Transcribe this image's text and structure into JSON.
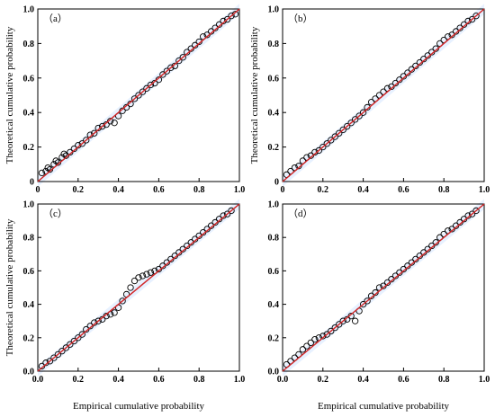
{
  "chart_data": [
    {
      "type": "scatter",
      "panel_label": "（a）",
      "xlabel": "",
      "ylabel": "Theoretical cumulative probability",
      "xlim": [
        0,
        1.0
      ],
      "ylim": [
        0,
        1.0
      ],
      "xticks": [
        "0",
        "0.2",
        "0.4",
        "0.6",
        "0.8",
        "1.0"
      ],
      "yticks": [
        "0",
        "0.2",
        "0.4",
        "0.6",
        "0.8",
        "1.0"
      ],
      "grid": false,
      "series": [
        {
          "values": [
            [
              0.02,
              0.05
            ],
            [
              0.04,
              0.06
            ],
            [
              0.05,
              0.08
            ],
            [
              0.06,
              0.07
            ],
            [
              0.08,
              0.1
            ],
            [
              0.09,
              0.12
            ],
            [
              0.1,
              0.11
            ],
            [
              0.12,
              0.14
            ],
            [
              0.13,
              0.16
            ],
            [
              0.14,
              0.15
            ],
            [
              0.16,
              0.17
            ],
            [
              0.18,
              0.19
            ],
            [
              0.2,
              0.21
            ],
            [
              0.22,
              0.22
            ],
            [
              0.24,
              0.24
            ],
            [
              0.26,
              0.27
            ],
            [
              0.28,
              0.28
            ],
            [
              0.3,
              0.31
            ],
            [
              0.32,
              0.32
            ],
            [
              0.34,
              0.33
            ],
            [
              0.36,
              0.35
            ],
            [
              0.38,
              0.34
            ],
            [
              0.4,
              0.38
            ],
            [
              0.42,
              0.41
            ],
            [
              0.44,
              0.43
            ],
            [
              0.46,
              0.45
            ],
            [
              0.48,
              0.48
            ],
            [
              0.5,
              0.5
            ],
            [
              0.52,
              0.52
            ],
            [
              0.54,
              0.54
            ],
            [
              0.56,
              0.56
            ],
            [
              0.58,
              0.57
            ],
            [
              0.6,
              0.59
            ],
            [
              0.62,
              0.62
            ],
            [
              0.64,
              0.64
            ],
            [
              0.66,
              0.66
            ],
            [
              0.68,
              0.67
            ],
            [
              0.7,
              0.7
            ],
            [
              0.72,
              0.72
            ],
            [
              0.74,
              0.75
            ],
            [
              0.76,
              0.77
            ],
            [
              0.78,
              0.79
            ],
            [
              0.8,
              0.81
            ],
            [
              0.82,
              0.84
            ],
            [
              0.84,
              0.85
            ],
            [
              0.86,
              0.87
            ],
            [
              0.88,
              0.89
            ],
            [
              0.9,
              0.91
            ],
            [
              0.92,
              0.93
            ],
            [
              0.94,
              0.94
            ],
            [
              0.96,
              0.96
            ],
            [
              0.98,
              0.97
            ]
          ]
        }
      ]
    },
    {
      "type": "scatter",
      "panel_label": "（b）",
      "xlabel": "",
      "ylabel": "Theoretical cumulative probability",
      "xlim": [
        0,
        1.0
      ],
      "ylim": [
        0,
        1.0
      ],
      "xticks": [
        "0",
        "0.2",
        "0.4",
        "0.6",
        "0.8",
        "1.0"
      ],
      "yticks": [
        "0",
        "0.2",
        "0.4",
        "0.6",
        "0.8",
        "1.0"
      ],
      "grid": false,
      "series": [
        {
          "values": [
            [
              0.02,
              0.04
            ],
            [
              0.04,
              0.06
            ],
            [
              0.06,
              0.08
            ],
            [
              0.08,
              0.09
            ],
            [
              0.1,
              0.12
            ],
            [
              0.12,
              0.14
            ],
            [
              0.14,
              0.15
            ],
            [
              0.16,
              0.17
            ],
            [
              0.18,
              0.18
            ],
            [
              0.2,
              0.2
            ],
            [
              0.22,
              0.22
            ],
            [
              0.24,
              0.24
            ],
            [
              0.26,
              0.26
            ],
            [
              0.28,
              0.28
            ],
            [
              0.3,
              0.3
            ],
            [
              0.32,
              0.32
            ],
            [
              0.34,
              0.34
            ],
            [
              0.36,
              0.36
            ],
            [
              0.38,
              0.38
            ],
            [
              0.4,
              0.4
            ],
            [
              0.42,
              0.43
            ],
            [
              0.44,
              0.46
            ],
            [
              0.46,
              0.48
            ],
            [
              0.48,
              0.5
            ],
            [
              0.5,
              0.52
            ],
            [
              0.52,
              0.54
            ],
            [
              0.54,
              0.55
            ],
            [
              0.56,
              0.57
            ],
            [
              0.58,
              0.59
            ],
            [
              0.6,
              0.61
            ],
            [
              0.62,
              0.63
            ],
            [
              0.64,
              0.65
            ],
            [
              0.66,
              0.67
            ],
            [
              0.68,
              0.69
            ],
            [
              0.7,
              0.71
            ],
            [
              0.72,
              0.73
            ],
            [
              0.74,
              0.75
            ],
            [
              0.76,
              0.77
            ],
            [
              0.78,
              0.8
            ],
            [
              0.8,
              0.82
            ],
            [
              0.82,
              0.84
            ],
            [
              0.84,
              0.85
            ],
            [
              0.86,
              0.87
            ],
            [
              0.88,
              0.89
            ],
            [
              0.9,
              0.91
            ],
            [
              0.92,
              0.93
            ],
            [
              0.94,
              0.94
            ],
            [
              0.96,
              0.96
            ]
          ]
        }
      ]
    },
    {
      "type": "scatter",
      "panel_label": "（c）",
      "xlabel": "Empirical cumulative probability",
      "ylabel": "Theoretical cumulative probability",
      "xlim": [
        0,
        1.0
      ],
      "ylim": [
        0,
        1.0
      ],
      "xticks": [
        "0.0",
        "0.2",
        "0.4",
        "0.6",
        "0.8",
        "1.0"
      ],
      "yticks": [
        "0.0",
        "0.2",
        "0.4",
        "0.6",
        "0.8",
        "1.0"
      ],
      "grid": false,
      "series": [
        {
          "values": [
            [
              0.02,
              0.03
            ],
            [
              0.04,
              0.05
            ],
            [
              0.06,
              0.06
            ],
            [
              0.08,
              0.08
            ],
            [
              0.1,
              0.1
            ],
            [
              0.12,
              0.12
            ],
            [
              0.14,
              0.14
            ],
            [
              0.16,
              0.16
            ],
            [
              0.18,
              0.18
            ],
            [
              0.2,
              0.2
            ],
            [
              0.22,
              0.22
            ],
            [
              0.24,
              0.25
            ],
            [
              0.26,
              0.27
            ],
            [
              0.28,
              0.29
            ],
            [
              0.3,
              0.3
            ],
            [
              0.32,
              0.31
            ],
            [
              0.34,
              0.33
            ],
            [
              0.36,
              0.34
            ],
            [
              0.38,
              0.35
            ],
            [
              0.4,
              0.38
            ],
            [
              0.42,
              0.42
            ],
            [
              0.44,
              0.46
            ],
            [
              0.46,
              0.5
            ],
            [
              0.48,
              0.54
            ],
            [
              0.5,
              0.56
            ],
            [
              0.52,
              0.57
            ],
            [
              0.54,
              0.58
            ],
            [
              0.56,
              0.59
            ],
            [
              0.58,
              0.6
            ],
            [
              0.6,
              0.61
            ],
            [
              0.62,
              0.63
            ],
            [
              0.64,
              0.65
            ],
            [
              0.66,
              0.67
            ],
            [
              0.68,
              0.69
            ],
            [
              0.7,
              0.71
            ],
            [
              0.72,
              0.73
            ],
            [
              0.74,
              0.75
            ],
            [
              0.76,
              0.77
            ],
            [
              0.78,
              0.79
            ],
            [
              0.8,
              0.81
            ],
            [
              0.82,
              0.83
            ],
            [
              0.84,
              0.85
            ],
            [
              0.86,
              0.87
            ],
            [
              0.88,
              0.89
            ],
            [
              0.9,
              0.91
            ],
            [
              0.92,
              0.93
            ],
            [
              0.94,
              0.94
            ],
            [
              0.96,
              0.96
            ]
          ]
        }
      ]
    },
    {
      "type": "scatter",
      "panel_label": "（d）",
      "xlabel": "Empirical cumulative probability",
      "ylabel": "",
      "xlim": [
        0,
        1.0
      ],
      "ylim": [
        0,
        1.0
      ],
      "xticks": [
        "0.0",
        "0.2",
        "0.4",
        "0.6",
        "0.8",
        "1.0"
      ],
      "yticks": [
        "0.0",
        "0.2",
        "0.4",
        "0.6",
        "0.8",
        "1.0"
      ],
      "grid": false,
      "series": [
        {
          "values": [
            [
              0.02,
              0.04
            ],
            [
              0.04,
              0.06
            ],
            [
              0.06,
              0.08
            ],
            [
              0.08,
              0.1
            ],
            [
              0.1,
              0.13
            ],
            [
              0.12,
              0.15
            ],
            [
              0.14,
              0.17
            ],
            [
              0.16,
              0.19
            ],
            [
              0.18,
              0.2
            ],
            [
              0.2,
              0.21
            ],
            [
              0.22,
              0.22
            ],
            [
              0.24,
              0.24
            ],
            [
              0.26,
              0.26
            ],
            [
              0.28,
              0.28
            ],
            [
              0.3,
              0.3
            ],
            [
              0.32,
              0.31
            ],
            [
              0.34,
              0.33
            ],
            [
              0.36,
              0.3
            ],
            [
              0.38,
              0.36
            ],
            [
              0.4,
              0.4
            ],
            [
              0.42,
              0.42
            ],
            [
              0.44,
              0.45
            ],
            [
              0.46,
              0.47
            ],
            [
              0.48,
              0.5
            ],
            [
              0.5,
              0.51
            ],
            [
              0.52,
              0.53
            ],
            [
              0.54,
              0.55
            ],
            [
              0.56,
              0.57
            ],
            [
              0.58,
              0.59
            ],
            [
              0.6,
              0.61
            ],
            [
              0.62,
              0.63
            ],
            [
              0.64,
              0.65
            ],
            [
              0.66,
              0.67
            ],
            [
              0.68,
              0.69
            ],
            [
              0.7,
              0.71
            ],
            [
              0.72,
              0.73
            ],
            [
              0.74,
              0.75
            ],
            [
              0.76,
              0.77
            ],
            [
              0.78,
              0.8
            ],
            [
              0.8,
              0.82
            ],
            [
              0.82,
              0.84
            ],
            [
              0.84,
              0.85
            ],
            [
              0.86,
              0.87
            ],
            [
              0.88,
              0.89
            ],
            [
              0.9,
              0.91
            ],
            [
              0.92,
              0.93
            ],
            [
              0.94,
              0.94
            ],
            [
              0.96,
              0.96
            ]
          ]
        }
      ]
    }
  ],
  "colors": {
    "reference_line": "#000000",
    "fit_line": "#d62728",
    "confidence_band": "#9ec9ff",
    "marker_edge": "#000000"
  }
}
